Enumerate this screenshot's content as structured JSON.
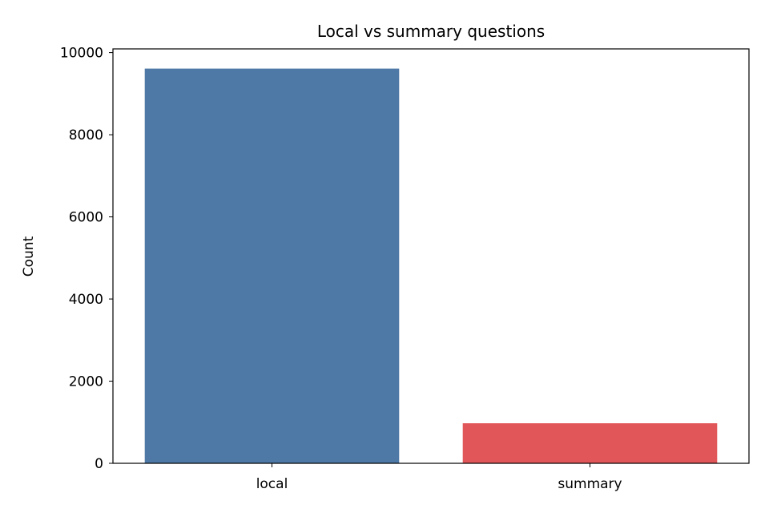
{
  "chart_data": {
    "type": "bar",
    "title": "Local vs summary questions",
    "y_label": "Count",
    "categories": [
      "local",
      "summary"
    ],
    "values": [
      9610,
      975
    ],
    "colors": [
      "#4e79a7",
      "#e15759"
    ],
    "ylim": [
      0,
      10090
    ],
    "yticks": [
      0,
      2000,
      4000,
      6000,
      8000,
      10000
    ],
    "grid": false
  }
}
